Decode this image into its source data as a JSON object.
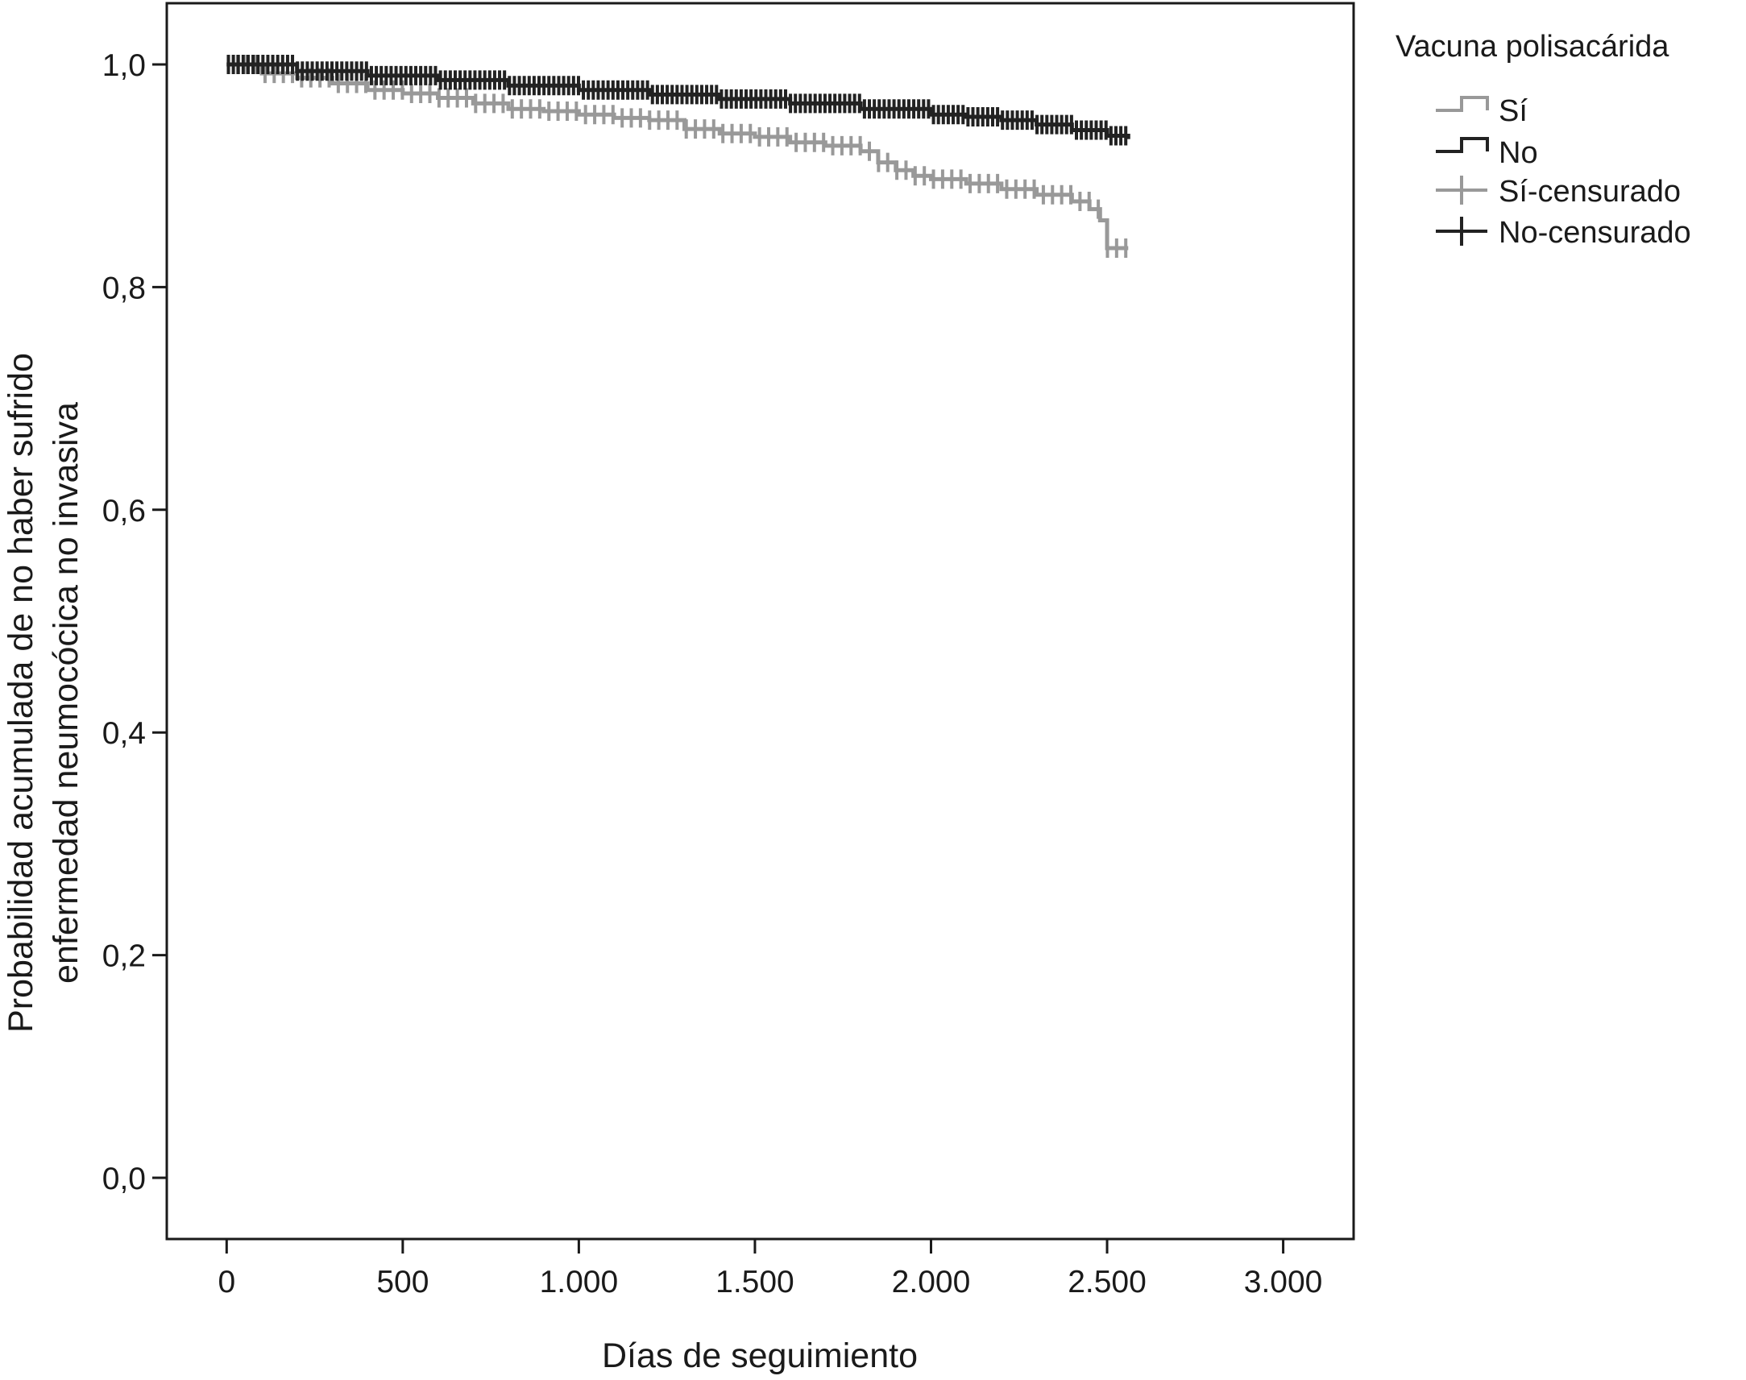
{
  "chart_data": {
    "type": "line",
    "subtype": "kaplan-meier",
    "title": "",
    "xlabel": "Días de seguimiento",
    "ylabel_lines": [
      "Probabilidad acumulada de no haber sufrido",
      "enfermedad neumocócica no invasiva"
    ],
    "xlim": [
      -170,
      3200
    ],
    "ylim": [
      -0.055,
      1.055
    ],
    "x_ticks": [
      0,
      500,
      1000,
      1500,
      2000,
      2500,
      3000
    ],
    "x_tick_labels": [
      "0",
      "500",
      "1.000",
      "1.500",
      "2.000",
      "2.500",
      "3.000"
    ],
    "y_ticks": [
      0,
      0.2,
      0.4,
      0.6,
      0.8,
      1.0
    ],
    "y_tick_labels": [
      "0,0",
      "0,2",
      "0,4",
      "0,6",
      "0,8",
      "1,0"
    ],
    "grid": false,
    "legend": {
      "title": "Vacuna polisacárida",
      "position": "right",
      "entries": [
        {
          "label": "Sí",
          "kind": "step",
          "color": "#999999"
        },
        {
          "label": "No",
          "kind": "step",
          "color": "#222222"
        },
        {
          "label": "Sí-censurado",
          "kind": "censor",
          "color": "#999999"
        },
        {
          "label": "No-censurado",
          "kind": "censor",
          "color": "#222222"
        }
      ]
    },
    "series": [
      {
        "name": "Sí",
        "color": "#999999",
        "points": [
          [
            0,
            1.0
          ],
          [
            100,
            0.992
          ],
          [
            200,
            0.988
          ],
          [
            300,
            0.983
          ],
          [
            400,
            0.977
          ],
          [
            500,
            0.974
          ],
          [
            600,
            0.97
          ],
          [
            700,
            0.965
          ],
          [
            800,
            0.96
          ],
          [
            900,
            0.958
          ],
          [
            1000,
            0.955
          ],
          [
            1100,
            0.952
          ],
          [
            1200,
            0.95
          ],
          [
            1300,
            0.942
          ],
          [
            1400,
            0.938
          ],
          [
            1500,
            0.935
          ],
          [
            1600,
            0.93
          ],
          [
            1700,
            0.927
          ],
          [
            1800,
            0.922
          ],
          [
            1850,
            0.912
          ],
          [
            1900,
            0.905
          ],
          [
            1950,
            0.9
          ],
          [
            2000,
            0.897
          ],
          [
            2100,
            0.893
          ],
          [
            2200,
            0.888
          ],
          [
            2300,
            0.883
          ],
          [
            2400,
            0.877
          ],
          [
            2450,
            0.87
          ],
          [
            2480,
            0.86
          ],
          [
            2500,
            0.835
          ],
          [
            2560,
            0.835
          ]
        ]
      },
      {
        "name": "No",
        "color": "#222222",
        "points": [
          [
            0,
            1.0
          ],
          [
            200,
            0.994
          ],
          [
            400,
            0.99
          ],
          [
            600,
            0.986
          ],
          [
            800,
            0.981
          ],
          [
            1000,
            0.977
          ],
          [
            1200,
            0.973
          ],
          [
            1400,
            0.969
          ],
          [
            1600,
            0.965
          ],
          [
            1800,
            0.96
          ],
          [
            2000,
            0.955
          ],
          [
            2100,
            0.953
          ],
          [
            2200,
            0.95
          ],
          [
            2300,
            0.946
          ],
          [
            2400,
            0.941
          ],
          [
            2500,
            0.936
          ],
          [
            2560,
            0.933
          ]
        ]
      }
    ]
  }
}
